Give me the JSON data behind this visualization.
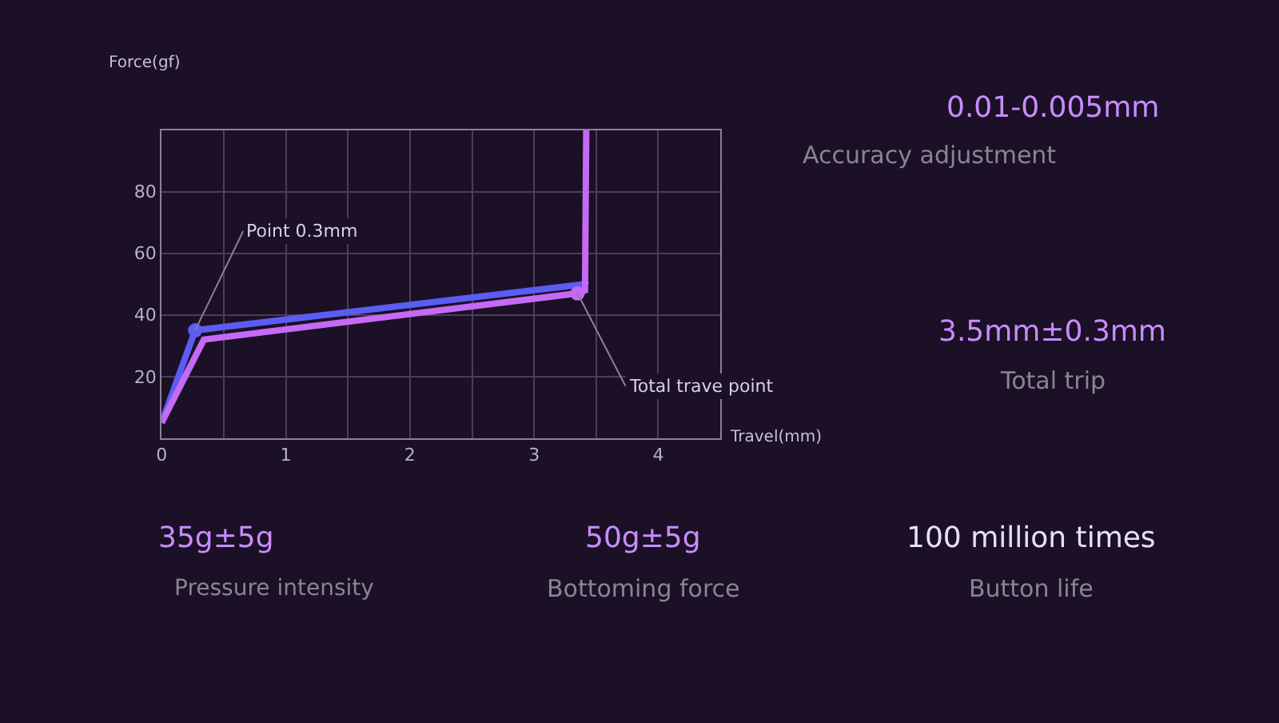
{
  "chart_data": {
    "type": "line",
    "xlabel": "Travel(mm)",
    "ylabel": "Force(gf)",
    "series": [
      {
        "color": "#5b5cf2",
        "x": [
          0,
          0.27,
          3.41,
          3.42
        ],
        "values": [
          5,
          35,
          50,
          51
        ]
      },
      {
        "color": "#c56af5",
        "x": [
          0,
          0.34,
          3.35,
          3.41,
          3.42
        ],
        "values": [
          5,
          32,
          47,
          48,
          100
        ]
      },
      {
        "type": "scatter",
        "color": "#5b5cf2",
        "x": [
          0.27
        ],
        "values": [
          35
        ]
      },
      {
        "type": "scatter",
        "color": "#c56af5",
        "x": [
          3.35
        ],
        "values": [
          47
        ]
      }
    ],
    "xlim": [
      0,
      4.5
    ],
    "ylim": [
      0,
      100
    ],
    "xticks": [
      0,
      {
        "value": 0.5,
        "label": null
      },
      1,
      {
        "value": 1.5,
        "label": null
      },
      2,
      {
        "value": 2.5,
        "label": null
      },
      3,
      {
        "value": 3.5,
        "label": null
      },
      4,
      {
        "value": 4.5,
        "label": null
      }
    ],
    "yticks": [
      {
        "value": 0,
        "label": null
      },
      20,
      40,
      60,
      80,
      {
        "value": 100,
        "label": null
      }
    ],
    "grid": true,
    "annotations": [
      {
        "text": "Point 0.3mm",
        "x": 0.27,
        "y": 35
      },
      {
        "text": "Total trave point",
        "x": 3.35,
        "y": 47
      },
      "0.01-0.005mm",
      "Accuracy adjustment",
      "3.5mm±0.3mm",
      "Total trip",
      "35g±5g",
      "Pressure intensity",
      "50g±5g",
      "Bottoming force",
      "100 million times",
      "Button life"
    ]
  }
}
